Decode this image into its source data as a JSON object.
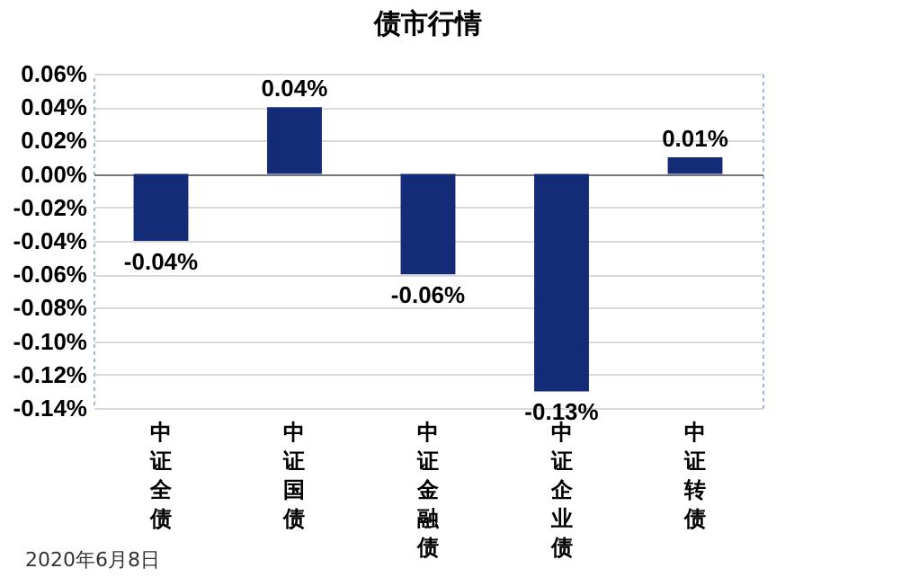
{
  "chart_data": {
    "type": "bar",
    "title": "债市行情",
    "categories": [
      "中证全债",
      "中证国债",
      "中证金融债",
      "中证企业债",
      "中证转债"
    ],
    "values": [
      -0.04,
      0.04,
      -0.06,
      -0.13,
      0.01
    ],
    "value_labels": [
      "-0.04%",
      "0.04%",
      "-0.06%",
      "-0.13%",
      "0.01%"
    ],
    "color": "#142b78",
    "ylim": [
      -0.14,
      0.06
    ],
    "yticks": [
      {
        "value": -0.14,
        "label": "-0.14%"
      },
      {
        "value": -0.12,
        "label": "-0.12%"
      },
      {
        "value": -0.1,
        "label": "-0.10%"
      },
      {
        "value": -0.08,
        "label": "-0.08%"
      },
      {
        "value": -0.06,
        "label": "-0.06%"
      },
      {
        "value": -0.04,
        "label": "-0.04%"
      },
      {
        "value": -0.02,
        "label": "-0.02%"
      },
      {
        "value": 0,
        "label": "0.00%"
      },
      {
        "value": 0.02,
        "label": "0.02%"
      },
      {
        "value": 0.04,
        "label": "0.04%"
      },
      {
        "value": 0.06,
        "label": "0.06%"
      }
    ],
    "grid": "y",
    "annotations": [
      "2020年6月8日"
    ]
  }
}
